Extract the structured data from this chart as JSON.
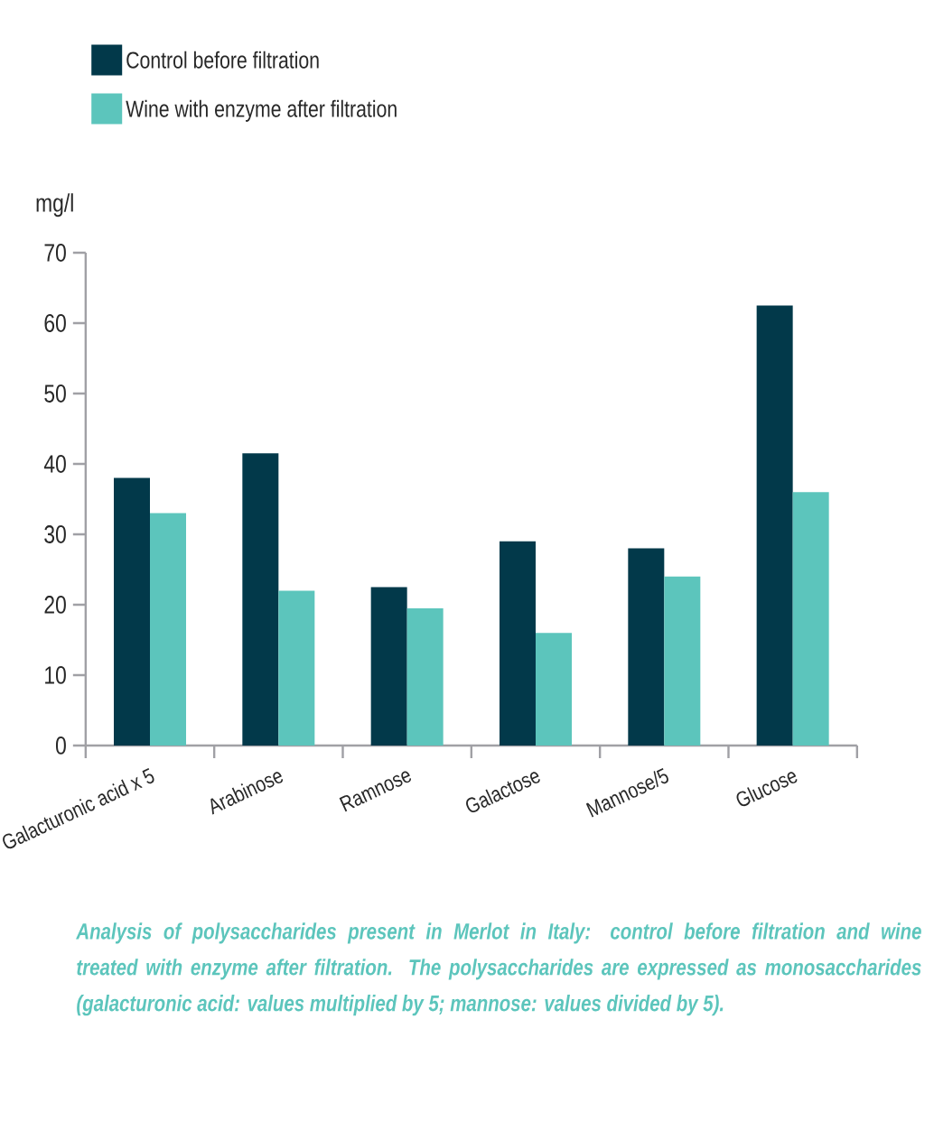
{
  "chart_data": {
    "type": "bar",
    "ylabel": "mg/l",
    "categories": [
      "Galacturonic acid x 5",
      "Arabinose",
      "Ramnose",
      "Galactose",
      "Mannose/5",
      "Glucose"
    ],
    "series": [
      {
        "name": "Control before filtration",
        "color": "#02394a",
        "values": [
          38,
          41.5,
          22.5,
          29,
          28,
          62.5
        ]
      },
      {
        "name": "Wine with enzyme after filtration",
        "color": "#5cc5bc",
        "values": [
          33,
          22,
          19.5,
          16,
          24,
          36
        ]
      }
    ],
    "ylim": [
      0,
      70
    ],
    "yticks": [
      0,
      10,
      20,
      30,
      40,
      50,
      60,
      70
    ],
    "grid": false,
    "legend": "top left",
    "annotations": [
      "Analysis of polysaccharides present in Merlot in Italy: control before filtration and wine treated with enzyme after filtration. The polysaccharides are expressed as monosaccharides (galacturonic acid: values multiplied by 5; mannose: values divided by 5)."
    ]
  }
}
